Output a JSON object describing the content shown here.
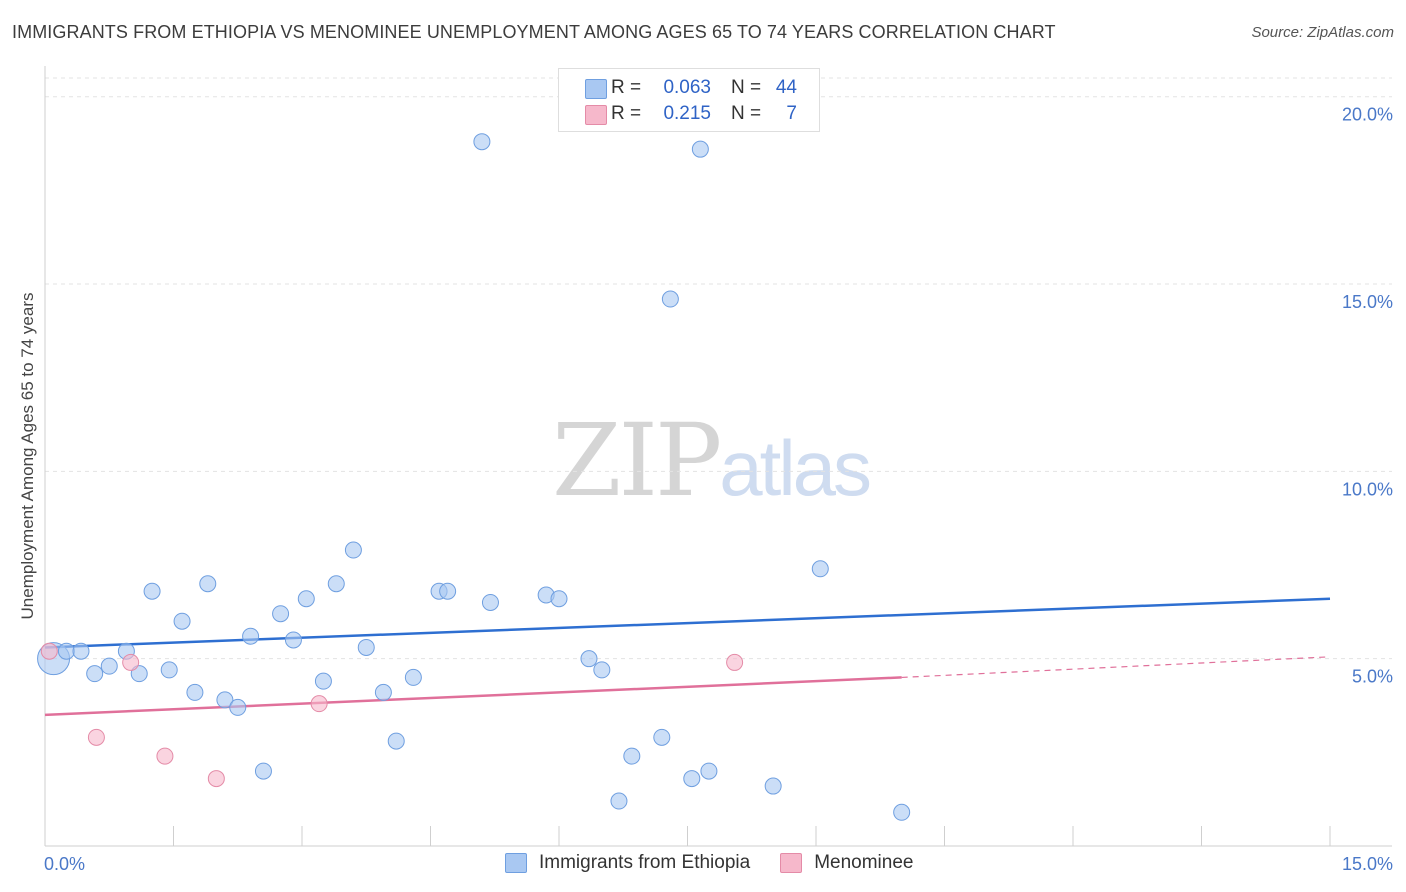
{
  "title": "IMMIGRANTS FROM ETHIOPIA VS MENOMINEE UNEMPLOYMENT AMONG AGES 65 TO 74 YEARS CORRELATION CHART",
  "source": "Source: ZipAtlas.com",
  "watermark": {
    "zip": "ZIP",
    "atlas": "atlas"
  },
  "legend": {
    "rows": [
      {
        "r_label": "R =",
        "r_value": "0.063",
        "n_label": "N =",
        "n_value": "44",
        "color": "#a9c8f2"
      },
      {
        "r_label": "R =",
        "r_value": "0.215",
        "n_label": "N =",
        "n_value": "7",
        "color": "#f6b8cb"
      }
    ]
  },
  "chart_data": {
    "type": "scatter",
    "title": "IMMIGRANTS FROM ETHIOPIA VS MENOMINEE UNEMPLOYMENT AMONG AGES 65 TO 74 YEARS CORRELATION CHART",
    "xlabel": "",
    "ylabel": "Unemployment Among Ages 65 to 74 years",
    "xlim": [
      0,
      15
    ],
    "ylim": [
      0,
      20.5
    ],
    "x_tick_labels": [
      "0.0%",
      "15.0%"
    ],
    "y_ticks": [
      5,
      10,
      15,
      20
    ],
    "y_tick_labels": [
      "5.0%",
      "10.0%",
      "15.0%",
      "20.0%"
    ],
    "grid": true,
    "series": [
      {
        "name": "Immigrants from Ethiopia",
        "color": "#a9c8f2",
        "stroke": "#6f9fe0",
        "line_color": "#2e6fd1",
        "trend": {
          "x0": 0,
          "y0": 5.3,
          "x1": 15,
          "y1": 6.6
        },
        "points": [
          [
            0.1,
            5.0
          ],
          [
            0.25,
            5.2
          ],
          [
            0.42,
            5.2
          ],
          [
            0.58,
            4.6
          ],
          [
            0.75,
            4.8
          ],
          [
            0.95,
            5.2
          ],
          [
            1.1,
            4.6
          ],
          [
            1.25,
            6.8
          ],
          [
            1.45,
            4.7
          ],
          [
            1.6,
            6.0
          ],
          [
            1.75,
            4.1
          ],
          [
            1.9,
            7.0
          ],
          [
            2.1,
            3.9
          ],
          [
            2.25,
            3.7
          ],
          [
            2.4,
            5.6
          ],
          [
            2.55,
            2.0
          ],
          [
            2.75,
            6.2
          ],
          [
            2.9,
            5.5
          ],
          [
            3.05,
            6.6
          ],
          [
            3.25,
            4.4
          ],
          [
            3.4,
            7.0
          ],
          [
            3.6,
            7.9
          ],
          [
            3.75,
            5.3
          ],
          [
            3.95,
            4.1
          ],
          [
            4.1,
            2.8
          ],
          [
            4.3,
            4.5
          ],
          [
            4.6,
            6.8
          ],
          [
            4.7,
            6.8
          ],
          [
            5.1,
            18.8
          ],
          [
            5.2,
            6.5
          ],
          [
            5.85,
            6.7
          ],
          [
            6.0,
            6.6
          ],
          [
            6.35,
            5.0
          ],
          [
            6.5,
            4.7
          ],
          [
            6.7,
            1.2
          ],
          [
            6.85,
            2.4
          ],
          [
            7.2,
            2.9
          ],
          [
            7.3,
            14.6
          ],
          [
            7.55,
            1.8
          ],
          [
            7.75,
            2.0
          ],
          [
            7.65,
            18.6
          ],
          [
            8.5,
            1.6
          ],
          [
            9.05,
            7.4
          ],
          [
            10.0,
            0.9
          ]
        ]
      },
      {
        "name": "Menominee",
        "color": "#f6b8cb",
        "stroke": "#e48ba7",
        "line_color": "#e0709a",
        "trend": {
          "x0": 0,
          "y0": 3.5,
          "x1": 10.0,
          "y1": 4.5
        },
        "trend_extension": {
          "x0": 10.0,
          "y0": 4.5,
          "x1": 15,
          "y1": 5.05
        },
        "points": [
          [
            0.05,
            5.2
          ],
          [
            0.6,
            2.9
          ],
          [
            1.0,
            4.9
          ],
          [
            1.4,
            2.4
          ],
          [
            2.0,
            1.8
          ],
          [
            3.2,
            3.8
          ],
          [
            8.05,
            4.9
          ]
        ]
      }
    ]
  }
}
